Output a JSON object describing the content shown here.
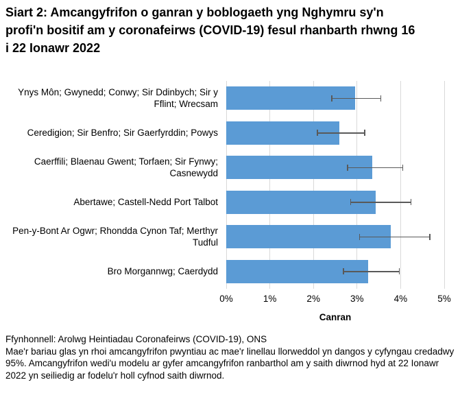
{
  "title": "Siart 2: Amcangyfrifon o ganran y boblogaeth yng Nghymru sy'n profi'n bositif am y coronafeirws (COVID-19) fesul rhanbarth rhwng 16 i 22 Ionawr 2022",
  "chart_data": {
    "type": "bar",
    "orientation": "horizontal",
    "title": "Siart 2: Amcangyfrifon o ganran y boblogaeth yng Nghymru sy'n profi'n bositif am y coronafeirws (COVID-19) fesul rhanbarth rhwng 16 i 22 Ionawr 2022",
    "categories": [
      "Ynys Môn; Gwynedd; Conwy; Sir Ddinbych; Sir y Fflint; Wrecsam",
      "Ceredigion; Sir Benfro; Sir Gaerfyrddin; Powys",
      "Caerffili; Blaenau Gwent; Torfaen; Sir Fynwy; Casnewydd",
      "Abertawe; Castell-Nedd Port Talbot",
      "Pen-y-Bont Ar Ogwr; Rhondda Cynon Taf; Merthyr Tudful",
      "Bro Morgannwg; Caerdydd"
    ],
    "values": [
      2.95,
      2.59,
      3.35,
      3.43,
      3.78,
      3.26
    ],
    "ci_low": [
      2.41,
      2.08,
      2.77,
      2.84,
      3.05,
      2.68
    ],
    "ci_high": [
      3.56,
      3.19,
      4.06,
      4.25,
      4.68,
      3.98
    ],
    "xlabel": "Canran",
    "ylabel": "",
    "x_ticks": [
      "0%",
      "1%",
      "2%",
      "3%",
      "4%",
      "5%"
    ],
    "xlim": [
      0,
      5
    ],
    "grid": true,
    "legend": "none",
    "bar_color": "#5B9BD5",
    "error_color": "#595959",
    "gridline_color": "#D9D9D9"
  },
  "footnote": {
    "source": "Ffynhonnell: Arolwg Heintiadau Coronafeirws (COVID-19), ONS",
    "note": "Mae'r bariau glas yn rhoi amcangyfrifon pwyntiau ac mae'r linellau llorweddol yn dangos y cyfyngau credadwy 95%. Amcangyfrifon wedi'u modelu ar gyfer amcangyfrifon ranbarthol am y saith diwrnod hyd at 22 Ionawr 2022 yn seiliedig ar fodelu'r holl cyfnod saith diwrnod."
  }
}
